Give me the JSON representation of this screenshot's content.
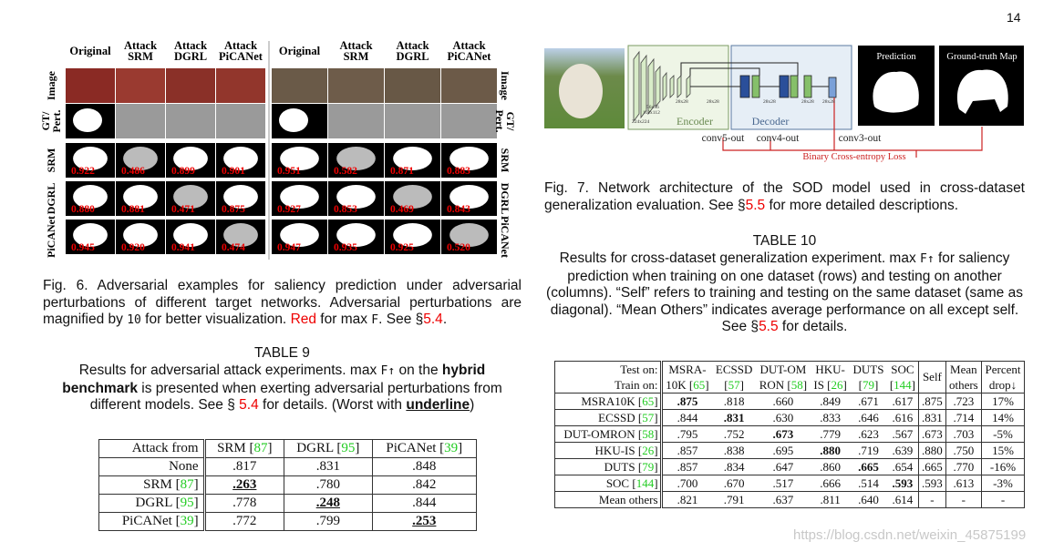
{
  "page_number": "14",
  "fig6": {
    "col_headers": [
      [
        "Original"
      ],
      [
        "Attack",
        "SRM"
      ],
      [
        "Attack",
        "DGRL"
      ],
      [
        "Attack",
        "PiCANet"
      ],
      [
        "Original"
      ],
      [
        "Attack",
        "SRM"
      ],
      [
        "Attack",
        "DGRL"
      ],
      [
        "Attack",
        "PiCANet"
      ]
    ],
    "row_labels": [
      [
        "Image"
      ],
      [
        "GT/",
        "Pert."
      ],
      [
        "SRM"
      ],
      [
        "DGRL"
      ],
      [
        "PiCANet"
      ]
    ],
    "scores": [
      [
        "0.922",
        "0.486",
        "0.899",
        "0.901",
        "0.951",
        "0.582",
        "0.871",
        "0.883"
      ],
      [
        "0.880",
        "0.881",
        "0.471",
        "0.875",
        "0.927",
        "0.853",
        "0.469",
        "0.843"
      ],
      [
        "0.945",
        "0.920",
        "0.941",
        "0.474",
        "0.947",
        "0.935",
        "0.925",
        "0.520"
      ]
    ],
    "caption": [
      "Fig. 6. Adversarial examples for saliency prediction under adversarial perturbations of different target networks. Adversarial perturbations are magnified by ",
      "10",
      " for better visualization. ",
      "Red",
      " for max ",
      "F",
      ". See §",
      "5.4",
      "."
    ]
  },
  "table9": {
    "title": "TABLE 9",
    "caption": [
      "Results for adversarial attack experiments. max ",
      "F↑",
      " on the ",
      "hybrid benchmark",
      " is presented when exerting adversarial perturbations from different models. See § ",
      "5.4",
      " for details. (Worst with ",
      "underline",
      ")"
    ],
    "header": [
      "Attack from",
      [
        "SRM [",
        "87",
        "]"
      ],
      [
        "DGRL [",
        "95",
        "]"
      ],
      [
        "PiCANet [",
        "39",
        "]"
      ]
    ],
    "rows": [
      [
        "None",
        ".817",
        ".831",
        ".848"
      ],
      [
        [
          "SRM [",
          "87",
          "]"
        ],
        ".263",
        ".780",
        ".842"
      ],
      [
        [
          "DGRL [",
          "95",
          "]"
        ],
        ".778",
        ".248",
        ".844"
      ],
      [
        [
          "PiCANet [",
          "39",
          "]"
        ],
        ".772",
        ".799",
        ".253"
      ]
    ],
    "underline_cells": [
      [
        1,
        1
      ],
      [
        2,
        2
      ],
      [
        3,
        3
      ]
    ]
  },
  "fig7": {
    "labels": {
      "prediction": "Prediction",
      "ground_truth": "Ground-truth Map",
      "encoder": "Encoder",
      "decoder": "Decoder",
      "conv5": "conv5-out",
      "conv4": "conv4-out",
      "conv3": "conv3-out",
      "loss": "Binary Cross-entropy Loss"
    },
    "sizes": [
      "224x224",
      "112x112",
      "56x56",
      "28x28",
      "28x28",
      "28x28",
      "28x28",
      "28x28"
    ],
    "caption": [
      "Fig. 7. Network architecture of the SOD model used in cross-dataset generalization evaluation. See §",
      "5.5",
      " for more detailed descriptions."
    ]
  },
  "table10": {
    "title": "TABLE 10",
    "caption": [
      "Results for cross-dataset generalization experiment. max ",
      "F↑",
      " for saliency prediction when training on one dataset (rows) and testing on another (columns). “Self” refers to training and testing on the same dataset (same as diagonal). “Mean Others” indicates average performance on all except self. See §",
      "5.5",
      " for details."
    ],
    "header_top": [
      "Test on:",
      "MSRA-",
      "ECSSD",
      "DUT-OM",
      "HKU-",
      "DUTS",
      "SOC",
      "Self",
      "Mean",
      "Percent"
    ],
    "header_bottom": [
      "Train on:",
      [
        "10K [",
        "65",
        "]"
      ],
      [
        "[",
        "57",
        "]"
      ],
      [
        "RON [",
        "58",
        "]"
      ],
      [
        "IS [",
        "26",
        "]"
      ],
      [
        "[",
        "79",
        "]"
      ],
      [
        "[",
        "144",
        "]"
      ],
      "others",
      "drop↓"
    ],
    "rows": [
      [
        [
          "MSRA10K [",
          "65",
          "]"
        ],
        ".875",
        ".818",
        ".660",
        ".849",
        ".671",
        ".617",
        ".875",
        ".723",
        "17%"
      ],
      [
        [
          "ECSSD [",
          "57",
          "]"
        ],
        ".844",
        ".831",
        ".630",
        ".833",
        ".646",
        ".616",
        ".831",
        ".714",
        "14%"
      ],
      [
        [
          "DUT-OMRON [",
          "58",
          "]"
        ],
        ".795",
        ".752",
        ".673",
        ".779",
        ".623",
        ".567",
        ".673",
        ".703",
        "-5%"
      ],
      [
        [
          "HKU-IS [",
          "26",
          "]"
        ],
        ".857",
        ".838",
        ".695",
        ".880",
        ".719",
        ".639",
        ".880",
        ".750",
        "15%"
      ],
      [
        [
          "DUTS [",
          "79",
          "]"
        ],
        ".857",
        ".834",
        ".647",
        ".860",
        ".665",
        ".654",
        ".665",
        ".770",
        "-16%"
      ],
      [
        [
          "SOC [",
          "144",
          "]"
        ],
        ".700",
        ".670",
        ".517",
        ".666",
        ".514",
        ".593",
        ".593",
        ".613",
        "-3%"
      ],
      [
        "Mean others",
        ".821",
        ".791",
        ".637",
        ".811",
        ".640",
        ".614",
        "-",
        "-",
        "-"
      ]
    ],
    "bold_cells": [
      [
        0,
        1
      ],
      [
        1,
        2
      ],
      [
        2,
        3
      ],
      [
        3,
        4
      ],
      [
        4,
        5
      ],
      [
        5,
        6
      ]
    ]
  },
  "watermark": "https://blog.csdn.net/weixin_45875199"
}
